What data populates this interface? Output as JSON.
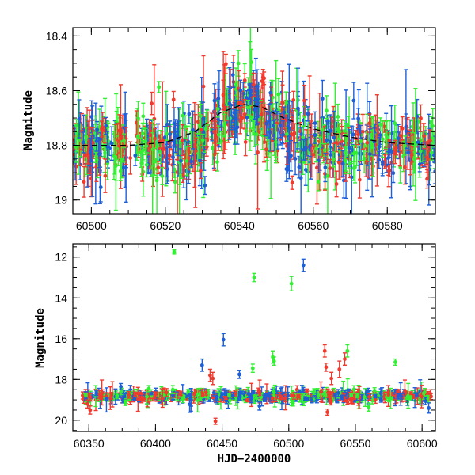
{
  "chart_data": [
    {
      "type": "scatter",
      "panel": "top",
      "xlabel": "",
      "ylabel": "Magnitude",
      "xlim": [
        60495,
        60593
      ],
      "ylim": [
        19.05,
        18.37
      ],
      "y_inverted": true,
      "x_ticks": [
        60500,
        60520,
        60540,
        60560,
        60580
      ],
      "x_tick_labels": [
        "60500",
        "60520",
        "60540",
        "60560",
        "60580"
      ],
      "y_ticks": [
        18.4,
        18.6,
        18.8,
        19.0
      ],
      "y_tick_labels": [
        "18.4",
        "18.6",
        "18.8",
        "19"
      ],
      "series_colors": {
        "green": "#33ee33",
        "blue": "#1f5fd6",
        "red": "#f03a2e"
      },
      "model_curve": {
        "style": "dashed",
        "color": "#000000",
        "x": [
          60495,
          60510,
          60520,
          60528,
          60535,
          60541,
          60546,
          60552,
          60560,
          60570,
          60580,
          60593
        ],
        "y": [
          18.8,
          18.8,
          18.79,
          18.75,
          18.68,
          18.65,
          18.66,
          18.7,
          18.74,
          18.77,
          18.79,
          18.8
        ]
      },
      "baseline": 18.8,
      "events": [
        {
          "x0": 60527,
          "x1": 60560,
          "peak": 60541,
          "depth": 0.15
        }
      ],
      "scatter": 0.045,
      "err_typical": 0.05,
      "n_points": 900
    },
    {
      "type": "scatter",
      "panel": "bottom",
      "xlabel": "HJD−2400000",
      "ylabel": "Magnitude",
      "xlim": [
        60338,
        60610
      ],
      "ylim": [
        20.55,
        11.35
      ],
      "y_inverted": true,
      "x_ticks": [
        60350,
        60400,
        60450,
        60500,
        60550,
        60600
      ],
      "x_tick_labels": [
        "60350",
        "60400",
        "60450",
        "60500",
        "60550",
        "60600"
      ],
      "y_ticks": [
        12,
        14,
        16,
        18,
        20
      ],
      "y_tick_labels": [
        "12",
        "14",
        "16",
        "18",
        "20"
      ],
      "series_colors": {
        "green": "#33ee33",
        "blue": "#1f5fd6",
        "red": "#f03a2e"
      },
      "baseline": 18.82,
      "scatter": 0.12,
      "err_typical": 0.15,
      "n_points": 700,
      "outliers": [
        {
          "series": "green",
          "x": 60414,
          "y": 11.75,
          "err": 0.1
        },
        {
          "series": "green",
          "x": 60474,
          "y": 13.0,
          "err": 0.2
        },
        {
          "series": "green",
          "x": 60502,
          "y": 13.3,
          "err": 0.35
        },
        {
          "series": "blue",
          "x": 60511,
          "y": 12.4,
          "err": 0.3
        },
        {
          "series": "blue",
          "x": 60451,
          "y": 16.05,
          "err": 0.3
        },
        {
          "series": "blue",
          "x": 60435,
          "y": 17.3,
          "err": 0.3
        },
        {
          "series": "blue",
          "x": 60463,
          "y": 17.75,
          "err": 0.2
        },
        {
          "series": "blue",
          "x": 60374,
          "y": 18.35,
          "err": 0.15
        },
        {
          "series": "green",
          "x": 60473,
          "y": 17.45,
          "err": 0.2
        },
        {
          "series": "green",
          "x": 60488,
          "y": 16.9,
          "err": 0.3
        },
        {
          "series": "green",
          "x": 60489,
          "y": 17.1,
          "err": 0.2
        },
        {
          "series": "green",
          "x": 60544,
          "y": 16.6,
          "err": 0.3
        },
        {
          "series": "green",
          "x": 60580,
          "y": 17.15,
          "err": 0.15
        },
        {
          "series": "green",
          "x": 60413,
          "y": 18.5,
          "err": 0.2
        },
        {
          "series": "green",
          "x": 60395,
          "y": 18.45,
          "err": 0.15
        },
        {
          "series": "red",
          "x": 60527,
          "y": 16.6,
          "err": 0.3
        },
        {
          "series": "red",
          "x": 60528,
          "y": 17.4,
          "err": 0.2
        },
        {
          "series": "red",
          "x": 60538,
          "y": 17.5,
          "err": 0.4
        },
        {
          "series": "red",
          "x": 60542,
          "y": 17.0,
          "err": 0.3
        },
        {
          "series": "red",
          "x": 60441,
          "y": 17.8,
          "err": 0.3
        },
        {
          "series": "red",
          "x": 60443,
          "y": 17.95,
          "err": 0.3
        },
        {
          "series": "red",
          "x": 60532,
          "y": 17.95,
          "err": 0.3
        },
        {
          "series": "red",
          "x": 60445,
          "y": 20.05,
          "err": 0.15
        },
        {
          "series": "red",
          "x": 60529,
          "y": 19.6,
          "err": 0.15
        },
        {
          "series": "red",
          "x": 60351,
          "y": 19.5,
          "err": 0.2
        },
        {
          "series": "red",
          "x": 60349,
          "y": 19.2,
          "err": 0.2
        },
        {
          "series": "blue",
          "x": 60605,
          "y": 19.4,
          "err": 0.25
        },
        {
          "series": "blue",
          "x": 60478,
          "y": 19.3,
          "err": 0.2
        },
        {
          "series": "green",
          "x": 60560,
          "y": 19.35,
          "err": 0.2
        }
      ]
    }
  ]
}
